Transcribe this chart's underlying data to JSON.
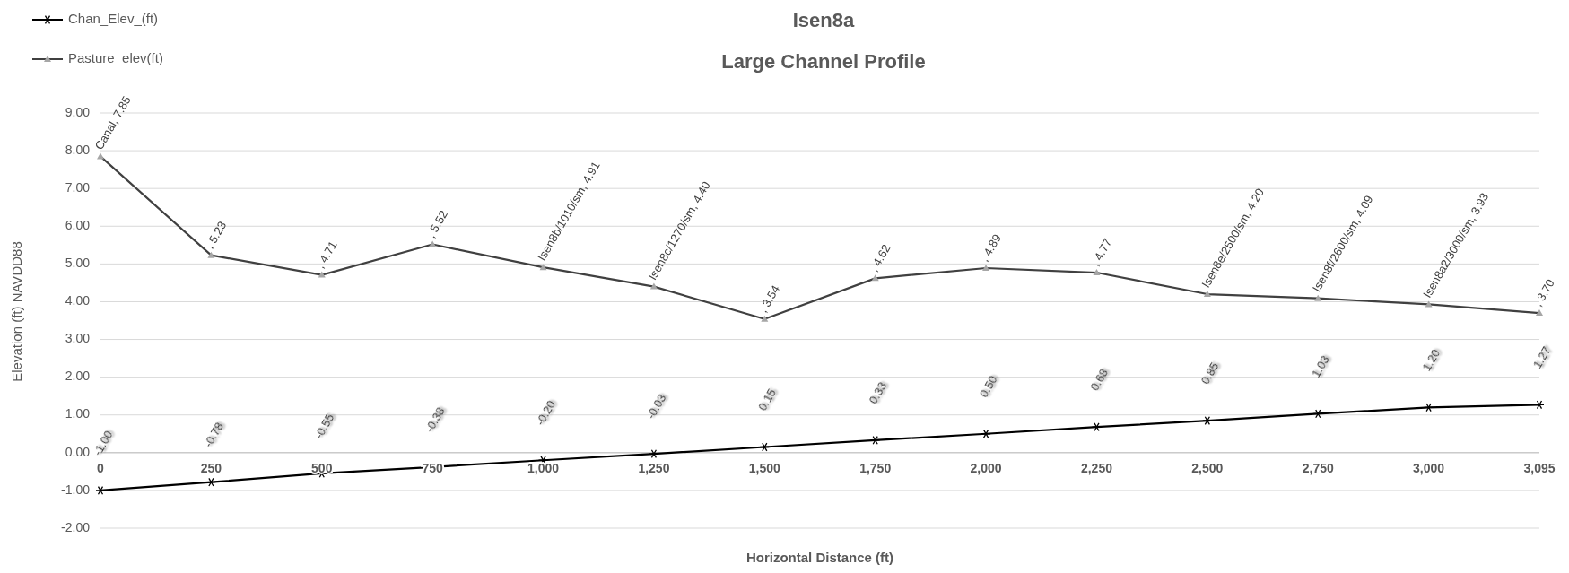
{
  "chart_data": {
    "type": "line",
    "title": "Isen8a",
    "subtitle": "Large Channel Profile",
    "xlabel": "Horizontal Distance (ft)",
    "ylabel": "Elevation (ft) NAVDD88",
    "categories": [
      "0",
      "250",
      "500",
      "750",
      "1,000",
      "1,250",
      "1,500",
      "1,750",
      "2,000",
      "2,250",
      "2,500",
      "2,750",
      "3,000",
      "3,095"
    ],
    "series": [
      {
        "name": "Chan_Elev_(ft)",
        "color": "#000000",
        "marker": "cross",
        "values": [
          -1.0,
          -0.78,
          -0.55,
          -0.38,
          -0.2,
          -0.03,
          0.15,
          0.33,
          0.5,
          0.68,
          0.85,
          1.03,
          1.2,
          1.27
        ],
        "value_labels": [
          "-1.00",
          "-0.78",
          "-0.55",
          "-0.38",
          "-0.20",
          "-0.03",
          "0.15",
          "0.33",
          "0.50",
          "0.68",
          "0.85",
          "1.03",
          "1.20",
          "1.27"
        ]
      },
      {
        "name": "Pasture_elev(ft)",
        "color": "#404040",
        "marker": "triangle",
        "values": [
          7.85,
          5.23,
          4.71,
          5.52,
          4.91,
          4.4,
          3.54,
          4.62,
          4.89,
          4.77,
          4.2,
          4.09,
          3.93,
          3.7
        ],
        "value_labels": [
          "Canal, 7.85",
          ", 5.23",
          ", 4.71",
          ", 5.52",
          "Isen8b/1010/sm, 4.91",
          "Isen8c/1270/sm, 4.40",
          ", 3.54",
          ", 4.62",
          ", 4.89",
          ", 4.77",
          "Isen8e/2500/sm, 4.20",
          "Isen8f/2600/sm, 4.09",
          "Isen8a2/3000/sm, 3.93",
          ", 3.70"
        ]
      }
    ],
    "ylim": [
      -2,
      9
    ],
    "yticks": [
      {
        "value": -2,
        "label": "-2.00"
      },
      {
        "value": -1,
        "label": "-1.00"
      },
      {
        "value": 0,
        "label": "0.00"
      },
      {
        "value": 1,
        "label": "1.00"
      },
      {
        "value": 2,
        "label": "2.00"
      },
      {
        "value": 3,
        "label": "3.00"
      },
      {
        "value": 4,
        "label": "4.00"
      },
      {
        "value": 5,
        "label": "5.00"
      },
      {
        "value": 6,
        "label": "6.00"
      },
      {
        "value": 7,
        "label": "7.00"
      },
      {
        "value": 8,
        "label": "8.00"
      },
      {
        "value": 9,
        "label": "9.00"
      }
    ],
    "grid": "y",
    "legend": "top left"
  }
}
